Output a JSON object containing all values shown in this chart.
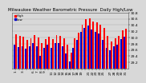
{
  "title": "Milwaukee Weather Barometric Pressure  Daily High/Low",
  "title_fontsize": 4.0,
  "background_color": "#d8d8d8",
  "plot_bg_color": "#d8d8d8",
  "bar_color_high": "#ff0000",
  "bar_color_low": "#0000cc",
  "ylim": [
    29.0,
    30.8
  ],
  "yticks": [
    29.2,
    29.4,
    29.6,
    29.8,
    30.0,
    30.2,
    30.4,
    30.6,
    30.8
  ],
  "x_labels": [
    "1",
    "",
    "3",
    "",
    "",
    "6",
    "7",
    "8",
    "9",
    "",
    "11",
    "12",
    "13",
    "14",
    "15",
    "16",
    "17",
    "18",
    "19",
    "",
    "21",
    "22",
    "23",
    "24",
    "25",
    "",
    "27",
    "28",
    "29",
    "30",
    "31"
  ],
  "high_values": [
    30.1,
    30.05,
    30.02,
    29.92,
    29.98,
    30.08,
    30.0,
    29.82,
    29.95,
    30.02,
    29.95,
    30.08,
    30.05,
    29.98,
    29.78,
    29.52,
    29.98,
    30.15,
    30.42,
    30.58,
    30.62,
    30.52,
    30.48,
    30.42,
    30.3,
    30.05,
    29.88,
    29.98,
    30.05,
    30.22,
    30.28
  ],
  "low_values": [
    29.78,
    29.7,
    29.72,
    29.65,
    29.72,
    29.82,
    29.72,
    29.42,
    29.68,
    29.78,
    29.68,
    29.82,
    29.82,
    29.72,
    29.48,
    29.22,
    29.68,
    29.92,
    30.18,
    30.32,
    30.38,
    30.25,
    30.18,
    30.12,
    29.92,
    29.68,
    29.58,
    29.72,
    29.78,
    29.95,
    30.02
  ],
  "legend_high": "High",
  "legend_low": "Low",
  "tick_fontsize": 3.2,
  "bar_width": 0.42
}
